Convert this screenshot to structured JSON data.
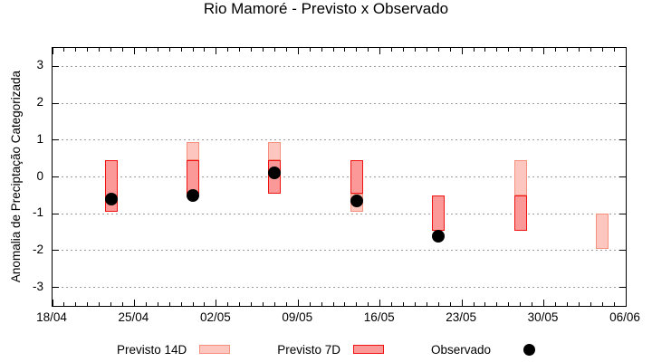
{
  "chart_data": {
    "type": "bar",
    "title": "Rio Mamoré - Previsto x Observado",
    "ylabel": "Anomalia de Preciptação Categorizada",
    "ylim": [
      -3.5,
      3.5
    ],
    "yticks": [
      3,
      2,
      1,
      0,
      -1,
      -2,
      -3
    ],
    "grid": {
      "color": "#9c9c9c",
      "style": "dotted"
    },
    "xlim_days": [
      0,
      49
    ],
    "xticks": [
      {
        "day": 0,
        "label": "18/04"
      },
      {
        "day": 7,
        "label": "25/04"
      },
      {
        "day": 14,
        "label": "02/05"
      },
      {
        "day": 21,
        "label": "09/05"
      },
      {
        "day": 28,
        "label": "16/05"
      },
      {
        "day": 35,
        "label": "23/05"
      },
      {
        "day": 42,
        "label": "30/05"
      },
      {
        "day": 49,
        "label": "06/06"
      }
    ],
    "minor_xtick_interval_days": 1,
    "legend_position": "bottom-center",
    "series": [
      {
        "name": "Previsto 14D",
        "type": "range-bar",
        "fill": "#fdc7bf",
        "border": "#f5907f",
        "bars": [
          {
            "date": "30/04",
            "day": 12,
            "low": 0.45,
            "high": 0.95
          },
          {
            "date": "07/05",
            "day": 19,
            "low": 0.45,
            "high": 0.95
          },
          {
            "date": "14/05",
            "day": 26,
            "low": -0.95,
            "high": -0.45
          },
          {
            "date": "28/05",
            "day": 40,
            "low": -0.5,
            "high": 0.45
          },
          {
            "date": "04/06",
            "day": 47,
            "low": -1.95,
            "high": -1.0
          }
        ]
      },
      {
        "name": "Previsto 7D",
        "type": "range-bar",
        "fill": "#fb9898",
        "border": "#ee1411",
        "bars": [
          {
            "date": "23/04",
            "day": 5,
            "low": -0.95,
            "high": 0.45
          },
          {
            "date": "30/04",
            "day": 12,
            "low": -0.45,
            "high": 0.45
          },
          {
            "date": "07/05",
            "day": 19,
            "low": -0.45,
            "high": 0.45
          },
          {
            "date": "14/05",
            "day": 26,
            "low": -0.45,
            "high": 0.45
          },
          {
            "date": "21/05",
            "day": 33,
            "low": -1.45,
            "high": -0.5
          },
          {
            "date": "28/05",
            "day": 40,
            "low": -1.45,
            "high": -0.5
          }
        ]
      },
      {
        "name": "Observado",
        "type": "scatter",
        "color": "#000000",
        "points": [
          {
            "date": "23/04",
            "day": 5,
            "value": -0.6
          },
          {
            "date": "30/04",
            "day": 12,
            "value": -0.5
          },
          {
            "date": "07/05",
            "day": 19,
            "value": 0.1
          },
          {
            "date": "14/05",
            "day": 26,
            "value": -0.65
          },
          {
            "date": "21/05",
            "day": 33,
            "value": -1.6
          }
        ]
      }
    ]
  }
}
